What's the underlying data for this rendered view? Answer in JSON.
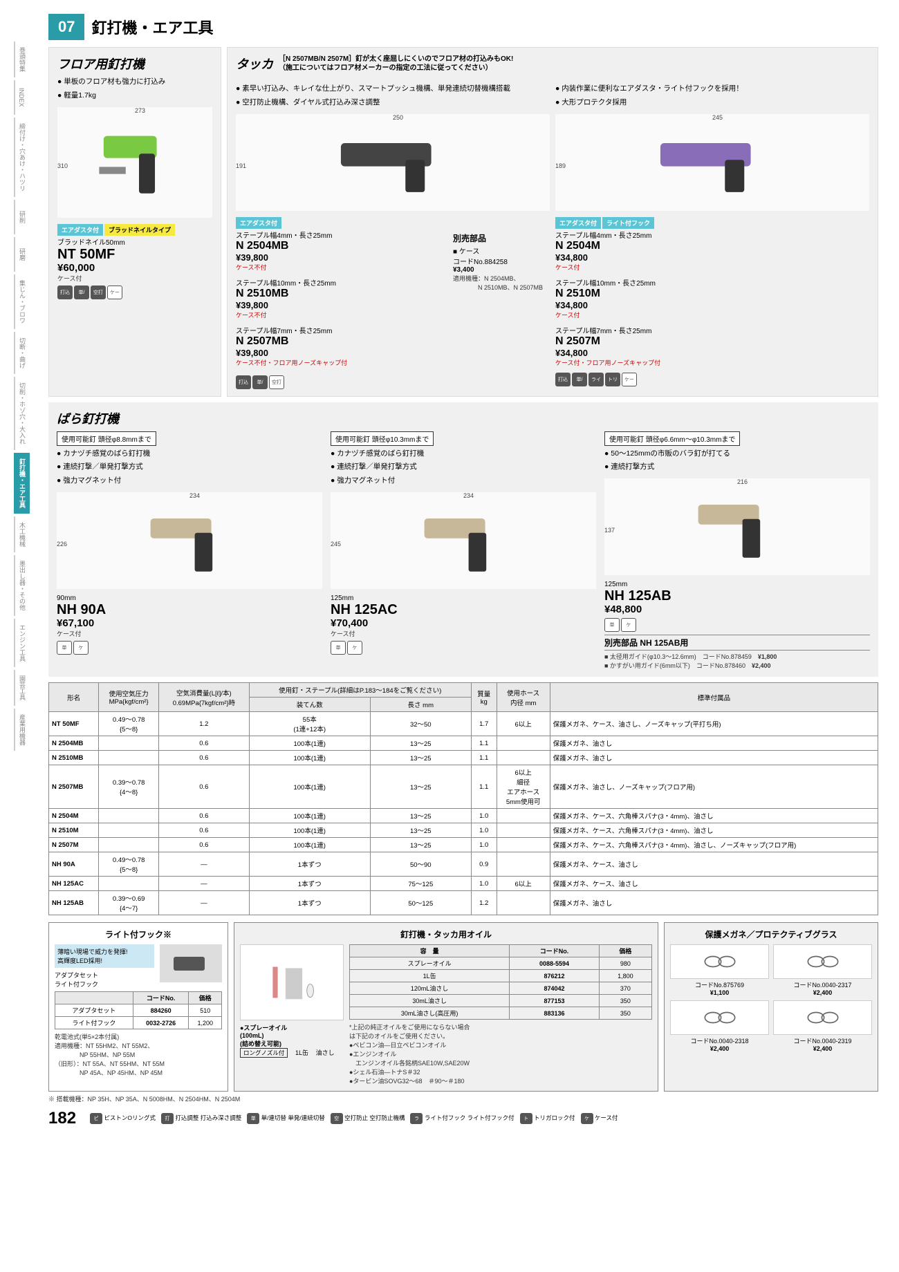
{
  "header": {
    "num": "07",
    "title": "釘打機・エア工具"
  },
  "sidenav": [
    "巻頭特集",
    "INDEX",
    "締付け・穴あけ・ハツリ",
    "研削",
    "研磨",
    "集じん・ブロワ",
    "切断・曲げ",
    "切削・ホゾ穴・大入れ",
    "釘打機・エア工具",
    "木工機械",
    "墨出し器・その他",
    "エンジン工具",
    "園芸工具",
    "産業用機器"
  ],
  "sidenav_active": 8,
  "floor": {
    "title": "フロア用釘打機",
    "bullets": [
      "単板のフロア材も強力に打込み",
      "軽量1.7kg"
    ],
    "dim_w": "273",
    "dim_h": "310",
    "tags": [
      "エアダスタ付",
      "ブラッドネイルタイプ"
    ],
    "spec": "ブラッドネイル50mm",
    "model": "NT 50MF",
    "price": "¥60,000",
    "note": "ケース付",
    "icons": [
      "打込調整",
      "単/連切替",
      "空打防止",
      "ケース"
    ]
  },
  "tacker": {
    "title": "タッカ",
    "headnote": "［N 2507MB/N 2507M］釘が太く座屈しにくいのでフロア材の打込みもOK!\n（施工についてはフロア材メーカーの指定の工法に従ってください）",
    "left": {
      "bullets": [
        "素早い打込み、キレイな仕上がり、スマートプッシュ機構、単発連続切替機構搭載",
        "空打防止機構、ダイヤル式打込み深さ調整"
      ],
      "dim_w": "250",
      "dim_h": "191",
      "tags": [
        "エアダスタ付"
      ],
      "items": [
        {
          "spec": "ステープル幅4mm・長さ25mm",
          "model": "N 2504MB",
          "price": "¥39,800",
          "note": "ケース不付"
        },
        {
          "spec": "ステープル幅10mm・長さ25mm",
          "model": "N 2510MB",
          "price": "¥39,800",
          "note": "ケース不付"
        },
        {
          "spec": "ステープル幅7mm・長さ25mm",
          "model": "N 2507MB",
          "price": "¥39,800",
          "note": "ケース不付・フロア用ノーズキャップ付"
        }
      ],
      "accessory": {
        "title": "別売部品",
        "label": "■ ケース",
        "code": "コードNo.884258",
        "price": "¥3,400",
        "models": "適用機種：N 2504MB、\n　　　　N 2510MB、N 2507MB"
      },
      "icons": [
        "打込調整",
        "単/連切替",
        "空打防止"
      ]
    },
    "right": {
      "bullets": [
        "内装作業に便利なエアダスタ・ライト付フックを採用！",
        "大形プロテクタ採用"
      ],
      "dim_w": "245",
      "dim_h": "189",
      "tags": [
        "エアダスタ付",
        "ライト付フック"
      ],
      "items": [
        {
          "spec": "ステープル幅4mm・長さ25mm",
          "model": "N 2504M",
          "price": "¥34,800",
          "note": "ケース付"
        },
        {
          "spec": "ステープル幅10mm・長さ25mm",
          "model": "N 2510M",
          "price": "¥34,800",
          "note": "ケース付"
        },
        {
          "spec": "ステープル幅7mm・長さ25mm",
          "model": "N 2507M",
          "price": "¥34,800",
          "note": "ケース付・フロア用ノーズキャップ付"
        }
      ],
      "icons": [
        "打込調整",
        "単/連切替",
        "ライト付フック",
        "トリガ",
        "ケース"
      ]
    }
  },
  "bara": {
    "title": "ばら釘打機",
    "cols": [
      {
        "nail": "使用可能釘 頭径φ8.8mmまで",
        "bullets": [
          "カナヅチ感覚のばら釘打機",
          "連続打撃／単発打撃方式",
          "強力マグネット付"
        ],
        "dim_w": "234",
        "dim_h": "226",
        "spec": "90mm",
        "model": "NH 90A",
        "price": "¥67,100",
        "note": "ケース付"
      },
      {
        "nail": "使用可能釘 頭径φ10.3mmまで",
        "bullets": [
          "カナヅチ感覚のばら釘打機",
          "連続打撃／単発打撃方式",
          "強力マグネット付"
        ],
        "dim_w": "234",
        "dim_h": "245",
        "spec": "125mm",
        "model": "NH 125AC",
        "price": "¥70,400",
        "note": "ケース付"
      },
      {
        "nail": "使用可能釘 頭径φ6.6mm～φ10.3mmまで",
        "bullets": [
          "50～125mmの市販のバラ釘が打てる",
          "連続打撃方式"
        ],
        "dim_w": "216",
        "dim_h": "137",
        "spec": "125mm",
        "model": "NH 125AB",
        "price": "¥48,800",
        "accessory": {
          "title": "別売部品 NH 125AB用",
          "rows": [
            {
              "label": "■ 太径用ガイド(φ10.3～12.6mm)",
              "code": "コードNo.878459",
              "price": "¥1,800"
            },
            {
              "label": "■ かすがい用ガイド(6mm以下)",
              "code": "コードNo.878460",
              "price": "¥2,400"
            }
          ]
        }
      }
    ]
  },
  "spec_table": {
    "headers": [
      "形名",
      "使用空気圧力\nMPa{kgf/cm²}",
      "空気消費量(L[ℓ]/本)\n0.69MPa{7kgf/cm²}時",
      "使用釘・ステープル(詳細はP.183～184をご覧ください)",
      "質量\nkg",
      "使用ホース\n内径 mm",
      "標準付属品"
    ],
    "sub": [
      "装てん数",
      "長さ mm"
    ],
    "rows": [
      [
        "NT 50MF",
        "0.49～0.78\n{5～8}",
        "1.2",
        "55本\n(1連+12本)",
        "32～50",
        "1.7",
        "6以上",
        "保護メガネ、ケース、油さし、ノーズキャップ(平打ち用)"
      ],
      [
        "N 2504MB",
        "",
        "0.6",
        "100本(1連)",
        "13～25",
        "1.1",
        "",
        "保護メガネ、油さし"
      ],
      [
        "N 2510MB",
        "",
        "0.6",
        "100本(1連)",
        "13～25",
        "1.1",
        "",
        "保護メガネ、油さし"
      ],
      [
        "N 2507MB",
        "0.39～0.78\n{4～8}",
        "0.6",
        "100本(1連)",
        "13～25",
        "1.1",
        "6以上\n細径\nエアホース\n5mm使用可",
        "保護メガネ、油さし、ノーズキャップ(フロア用)"
      ],
      [
        "N 2504M",
        "",
        "0.6",
        "100本(1連)",
        "13～25",
        "1.0",
        "",
        "保護メガネ、ケース、六角棒スパナ(3・4mm)、油さし"
      ],
      [
        "N 2510M",
        "",
        "0.6",
        "100本(1連)",
        "13～25",
        "1.0",
        "",
        "保護メガネ、ケース、六角棒スパナ(3・4mm)、油さし"
      ],
      [
        "N 2507M",
        "",
        "0.6",
        "100本(1連)",
        "13～25",
        "1.0",
        "",
        "保護メガネ、ケース、六角棒スパナ(3・4mm)、油さし、ノーズキャップ(フロア用)"
      ],
      [
        "NH 90A",
        "0.49～0.78\n{5～8}",
        "—",
        "1本ずつ",
        "50～90",
        "0.9",
        "",
        "保護メガネ、ケース、油さし"
      ],
      [
        "NH 125AC",
        "",
        "—",
        "1本ずつ",
        "75～125",
        "1.0",
        "6以上",
        "保護メガネ、ケース、油さし"
      ],
      [
        "NH 125AB",
        "0.39～0.69\n{4～7}",
        "—",
        "1本ずつ",
        "50～125",
        "1.2",
        "",
        "保護メガネ、油さし"
      ]
    ]
  },
  "hook": {
    "title": "ライト付フック※",
    "note": "薄暗い現場で威力を発揮!\n高輝度LED採用!",
    "label": "アダプタセット\nライト付フック",
    "rows": [
      [
        "アダプタセット",
        "884260",
        "510"
      ],
      [
        "ライト付フック",
        "0032-2726",
        "1,200"
      ]
    ],
    "battery": "乾電池式(単5×2本付属)",
    "models": "適用機種：NT 55HM2、NT 55M2、\n　　　　NP 55HM、NP 55M\n（旧形）：NT 55A、NT 55HM、NT 55M\n　　　　NP 45A、NP 45HM、NP 45M",
    "footnote": "※ 搭載機種：NP 35H、NP 35A、N 5008HM、N 2504HM、N 2504M"
  },
  "oil": {
    "title": "釘打機・タッカ用オイル",
    "rows": [
      [
        "スプレーオイル",
        "0088-5594",
        "980"
      ],
      [
        "1L缶",
        "876212",
        "1,800"
      ],
      [
        "120mL油さし",
        "874042",
        "370"
      ],
      [
        "30mL油さし",
        "877153",
        "350"
      ],
      [
        "30mL油さし(高圧用)",
        "883136",
        "350"
      ]
    ],
    "spray": "●スプレーオイル\n(100mL)\n(詰め替え可能)",
    "sprayTag": "ロングノズル付",
    "label1": "1L缶",
    "label2": "油さし",
    "note": "*上記の純正オイルをご使用にならない場合\nは下記のオイルをご使用ください。",
    "extra": "●ペビコン油—日立ペビコンオイル\n●エンジンオイル\n　エンジンオイル各銘柄SAE10W,SAE20W\n●シェル石油—トナS＃32\n●タービン油SOVG32～68　＃90～＃180"
  },
  "glasses": {
    "title": "保護メガネ／プロテクティブグラス",
    "items": [
      {
        "code": "コードNo.875769",
        "price": "¥1,100"
      },
      {
        "code": "コードNo.0040-2317",
        "price": "¥2,400"
      },
      {
        "code": "コードNo.0040-2318",
        "price": "¥2,400"
      },
      {
        "code": "コードNo.0040-2319",
        "price": "¥2,400"
      }
    ]
  },
  "legend": [
    "ピストンOリング式",
    "打込調整 打込み深さ調整",
    "単/連切替 単発/連続切替",
    "空打防止 空打防止機構",
    "ライト付フック ライト付フック付",
    "トリガロック付",
    "ケース付"
  ],
  "page_num": "182"
}
